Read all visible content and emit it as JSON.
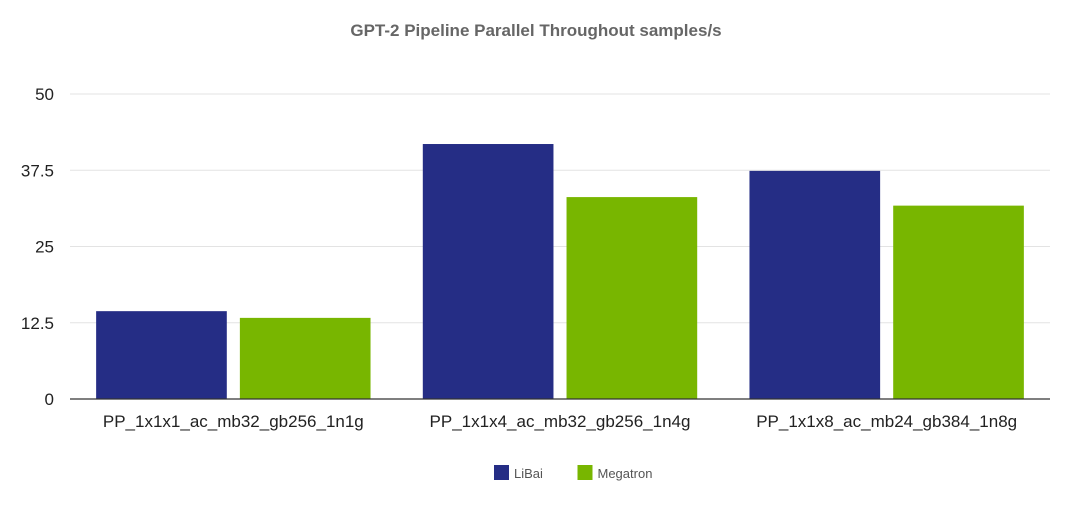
{
  "chart_data": {
    "type": "bar",
    "title": "GPT-2 Pipeline Parallel Throughout samples/s",
    "xlabel": "",
    "ylabel": "",
    "categories": [
      "PP_1x1x1_ac_mb32_gb256_1n1g",
      "PP_1x1x4_ac_mb32_gb256_1n4g",
      "PP_1x1x8_ac_mb24_gb384_1n8g"
    ],
    "series": [
      {
        "name": "LiBai",
        "color": "#252d85",
        "values": [
          14.4,
          41.8,
          37.4
        ]
      },
      {
        "name": "Megatron",
        "color": "#78b600",
        "values": [
          13.3,
          33.1,
          31.7
        ]
      }
    ],
    "ylim": [
      0,
      50
    ],
    "yticks": [
      0,
      12.5,
      25,
      37.5,
      50
    ],
    "ytick_labels": [
      "0",
      "12.5",
      "25",
      "37.5",
      "50"
    ],
    "grid": true,
    "legend_position": "bottom"
  }
}
